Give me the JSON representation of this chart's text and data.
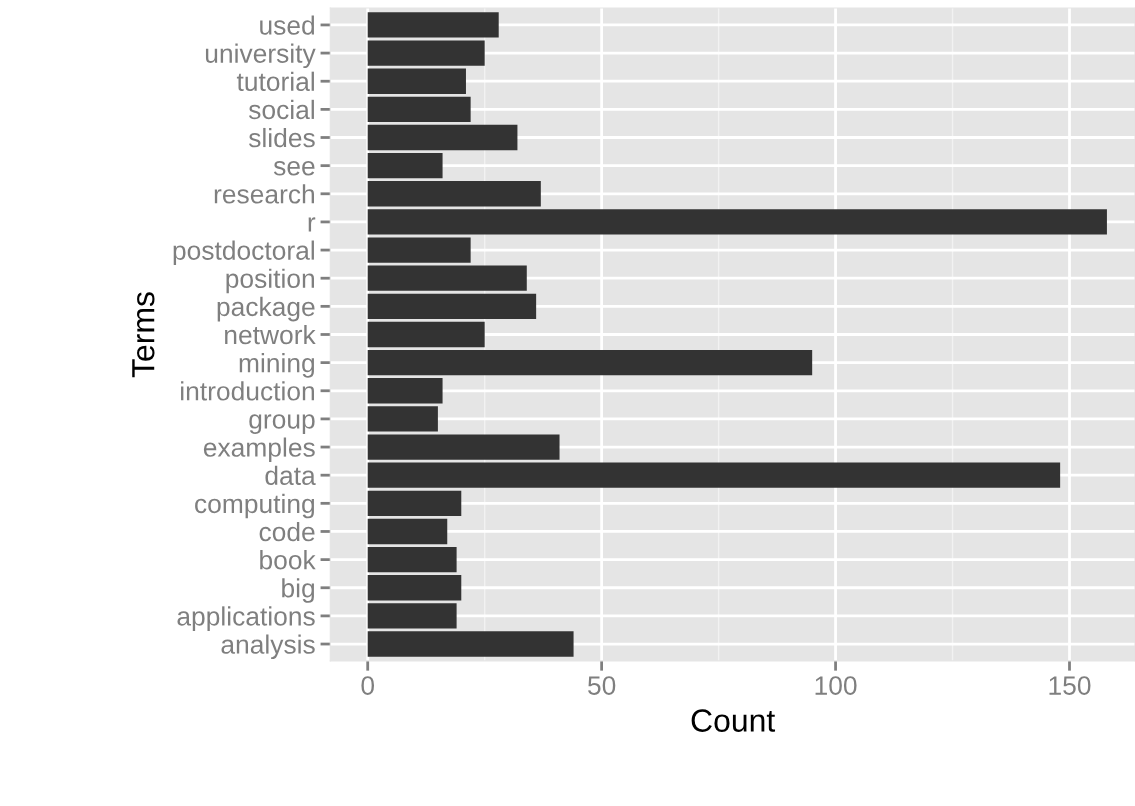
{
  "chart_data": {
    "type": "bar",
    "orientation": "horizontal",
    "xlabel": "Count",
    "ylabel": "Terms",
    "categories": [
      "used",
      "university",
      "tutorial",
      "social",
      "slides",
      "see",
      "research",
      "r",
      "postdoctoral",
      "position",
      "package",
      "network",
      "mining",
      "introduction",
      "group",
      "examples",
      "data",
      "computing",
      "code",
      "book",
      "big",
      "applications",
      "analysis"
    ],
    "values": [
      28,
      25,
      21,
      22,
      32,
      16,
      37,
      158,
      22,
      34,
      36,
      25,
      95,
      16,
      15,
      41,
      148,
      20,
      17,
      19,
      20,
      19,
      44
    ],
    "color": "#333333",
    "xlim": [
      -8,
      164
    ],
    "xticks": [
      0,
      50,
      100,
      150
    ],
    "grid": true
  }
}
